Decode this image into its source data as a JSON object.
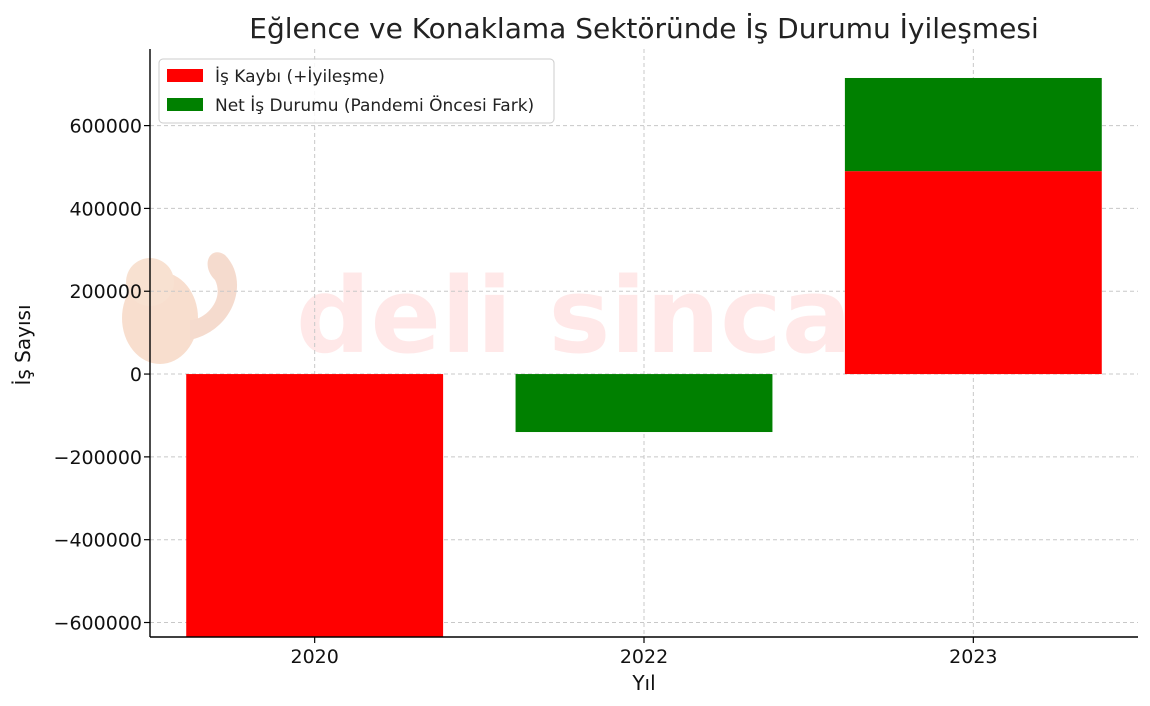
{
  "chart_data": {
    "type": "bar",
    "title": "Eğlence ve Konaklama Sektöründe İş Durumu İyileşmesi",
    "xlabel": "Yıl",
    "ylabel": "İş Sayısı",
    "categories": [
      "2020",
      "2022",
      "2023"
    ],
    "stacked": true,
    "series": [
      {
        "name": "İş Kaybı (+İyileşme)",
        "color": "#ff0000",
        "values": [
          -640000,
          0,
          490000
        ]
      },
      {
        "name": "Net İş Durumu (Pandemi Öncesi Fark)",
        "color": "#008000",
        "values": [
          0,
          -140000,
          225000
        ]
      }
    ],
    "ylim": [
      -635000,
      785000
    ],
    "yticks": [
      -600000,
      -400000,
      -200000,
      0,
      200000,
      400000,
      600000
    ],
    "ytick_labels": [
      "−600000",
      "−400000",
      "−200000",
      "0",
      "200000",
      "400000",
      "600000"
    ],
    "grid": true,
    "legend_position": "top-left"
  },
  "watermark": {
    "text": "deli sincap",
    "icon": "squirrel-icon"
  }
}
